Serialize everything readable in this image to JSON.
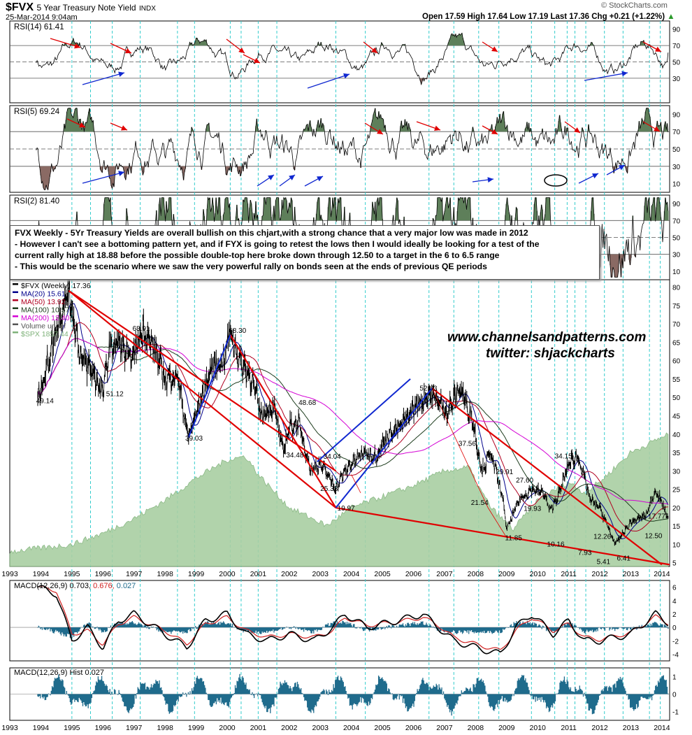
{
  "header": {
    "symbol": "$FVX",
    "name": "5 Year Treasury Note Yield",
    "exchange": "INDX",
    "date": "25-Mar-2014 9:04am",
    "quote": "Open 17.59  High 17.64  Low 17.19  Last 17.36  Chg +0.21 (+1.22%)",
    "quote_arrow": "▲",
    "brand": "© StockCharts.com"
  },
  "watermark": {
    "line1": "www.channelsandpatterns.com",
    "line2": "twitter: shjackcharts"
  },
  "annotation": {
    "lines": [
      "FVX Weekly - 5Yr Treasury Yields are overall bullish on this chjart,with a strong chance that a very major low was made in 2012",
      "- However I can't see a bottoming pattern yet, and if FYX is going to retest the lows then I would ideally be looking for a test of the",
      "current rally high at 18.88 before the possible double-top here broke down through 12.50 to a target in the 6 to 6.5 range",
      "- This would be the scenario where we saw the very powerful rally on bonds seen at the ends of previous QE periods"
    ]
  },
  "colors": {
    "price": "#000000",
    "ma20": "#00008b",
    "ma50": "#b00020",
    "ma100": "#1e3d1e",
    "ma200": "#d400d4",
    "spx_fill": "#a9cfa3",
    "spx_line": "#7fb27a",
    "trend_red": "#e00000",
    "channel_blue": "#1028d0",
    "cyan_dash": "#33cccc",
    "rsi_up_fill": "#5e7f5a",
    "rsi_down_fill": "#8a6a64",
    "macd_hist": "#1f6b8c",
    "macd_line": "#000000",
    "macd_signal": "#d02020"
  },
  "chart_data": [
    {
      "type": "line",
      "title": "RSI(14) 61.41",
      "label": "RSI(14)",
      "last_value": "61.41",
      "ylim": [
        0,
        100
      ],
      "ticks": [
        30,
        50,
        70,
        90
      ],
      "levels": [
        30,
        50,
        70
      ],
      "last": 61.41
    },
    {
      "type": "line",
      "title": "RSI(5) 69.24",
      "label": "RSI(5)",
      "last_value": "69.24",
      "ylim": [
        0,
        100
      ],
      "ticks": [
        10,
        30,
        50,
        70,
        90
      ],
      "levels": [
        30,
        50,
        70
      ],
      "last": 69.24
    },
    {
      "type": "line",
      "title": "RSI(2) 81.40",
      "label": "RSI(2)",
      "last_value": "81.40",
      "ylim": [
        0,
        100
      ],
      "ticks": [
        10,
        30,
        50,
        70,
        90
      ],
      "levels": [
        30,
        50,
        70
      ],
      "last": 81.4
    },
    {
      "type": "line",
      "title": "$FVX (Weekly) 17.36",
      "ylim": [
        4,
        82
      ],
      "yticks": [
        5,
        10,
        15,
        20,
        25,
        30,
        35,
        40,
        45,
        50,
        55,
        60,
        65,
        70,
        75,
        80
      ],
      "xlim": [
        1993,
        2014.25
      ],
      "xticks": [
        "1993",
        "1994",
        "1995",
        "1996",
        "1997",
        "1998",
        "1999",
        "2000",
        "2001",
        "2002",
        "2003",
        "2004",
        "2005",
        "2006",
        "2007",
        "2008",
        "2009",
        "2010",
        "2011",
        "2012",
        "2013",
        "2014"
      ],
      "legend": [
        {
          "name": "$FVX (Weekly) 17.36",
          "color": "#000000"
        },
        {
          "name": "MA(20) 15.61",
          "color": "#00008b"
        },
        {
          "name": "MA(50) 13.92",
          "color": "#b00020"
        },
        {
          "name": "MA(100) 10.57",
          "color": "#1e3d1e"
        },
        {
          "name": "MA(200) 12.40",
          "color": "#d400d4"
        },
        {
          "name": "Volume undef",
          "color": "#555555"
        },
        {
          "name": "$SPX 1857.44",
          "color": "#7fb27a"
        }
      ],
      "series": [
        {
          "name": "$FVX",
          "x": [
            1993.9,
            1994.3,
            1994.6,
            1994.9,
            1995.3,
            1995.6,
            1996.0,
            1996.2,
            1996.5,
            1996.9,
            1997.3,
            1997.7,
            1998.0,
            1998.4,
            1998.75,
            1999.1,
            1999.5,
            1999.9,
            2000.1,
            2000.4,
            2000.8,
            2001.1,
            2001.5,
            2001.8,
            2002.0,
            2002.3,
            2002.7,
            2003.0,
            2003.5,
            2003.8,
            2004.0,
            2004.4,
            2004.8,
            2005.2,
            2005.6,
            2006.0,
            2006.5,
            2006.8,
            2007.1,
            2007.5,
            2007.9,
            2008.2,
            2008.5,
            2008.9,
            2009.0,
            2009.4,
            2009.8,
            2010.2,
            2010.4,
            2010.7,
            2011.0,
            2011.3,
            2011.7,
            2012.0,
            2012.5,
            2013.0,
            2013.5,
            2013.8,
            2014.2
          ],
          "values": [
            49.14,
            62,
            72,
            79,
            60,
            58,
            51.12,
            63,
            65,
            60,
            68.91,
            62,
            55,
            56,
            39.03,
            48,
            58,
            60,
            68.3,
            60,
            55,
            45,
            48,
            35,
            42,
            43,
            30,
            32,
            25.33,
            30,
            32,
            35,
            34,
            40,
            42,
            47,
            51,
            49,
            46,
            52.63,
            44,
            30,
            35,
            21.54,
            14,
            22,
            25,
            24,
            19,
            24,
            32,
            34.15,
            22,
            20,
            10,
            16,
            18,
            25,
            17.36
          ]
        },
        {
          "name": "$SPX",
          "x": [
            1993,
            1994,
            1995,
            1996,
            1997,
            1998,
            1999,
            2000,
            2000.6,
            2001,
            2002,
            2003,
            2003.2,
            2004,
            2005,
            2006,
            2007,
            2007.8,
            2008,
            2008.5,
            2009.2,
            2010,
            2011,
            2011.5,
            2012,
            2013,
            2014.2
          ],
          "values": [
            8,
            9,
            10,
            13,
            17,
            22,
            28,
            33,
            34,
            29,
            20,
            16,
            15,
            20,
            23,
            26,
            30,
            31,
            27,
            20,
            14,
            22,
            27,
            24,
            27,
            35,
            40
          ]
        }
      ],
      "price_labels": [
        {
          "x": 1993.85,
          "y": 49.14,
          "text": "49.14"
        },
        {
          "x": 1996.1,
          "y": 51.12,
          "text": "51.12"
        },
        {
          "x": 1996.95,
          "y": 68.91,
          "text": "68.91"
        },
        {
          "x": 1998.65,
          "y": 39.03,
          "text": "39.03"
        },
        {
          "x": 2000.05,
          "y": 68.3,
          "text": "68.30"
        },
        {
          "x": 2001.9,
          "y": 34.48,
          "text": "34.48"
        },
        {
          "x": 2002.3,
          "y": 48.68,
          "text": "48.68"
        },
        {
          "x": 2003.1,
          "y": 34.04,
          "text": "34.04"
        },
        {
          "x": 2003.0,
          "y": 25.33,
          "text": "25.33"
        },
        {
          "x": 2003.55,
          "y": 19.97,
          "text": "19.97"
        },
        {
          "x": 2006.2,
          "y": 52.63,
          "text": "52.63"
        },
        {
          "x": 2007.45,
          "y": 37.56,
          "text": "37.56"
        },
        {
          "x": 2007.85,
          "y": 21.54,
          "text": "21.54"
        },
        {
          "x": 2008.65,
          "y": 29.91,
          "text": "29.91"
        },
        {
          "x": 2008.95,
          "y": 11.85,
          "text": "11.85"
        },
        {
          "x": 2009.3,
          "y": 27.6,
          "text": "27.60"
        },
        {
          "x": 2009.55,
          "y": 19.93,
          "text": "19.93"
        },
        {
          "x": 2010.55,
          "y": 34.15,
          "text": "34.15"
        },
        {
          "x": 2010.3,
          "y": 10.16,
          "text": "10.16"
        },
        {
          "x": 2011.3,
          "y": 7.93,
          "text": "7.93"
        },
        {
          "x": 2011.8,
          "y": 12.26,
          "text": "12.26"
        },
        {
          "x": 2011.9,
          "y": 5.41,
          "text": "5.41"
        },
        {
          "x": 2012.55,
          "y": 6.41,
          "text": "6.41"
        },
        {
          "x": 2013.55,
          "y": 17.77,
          "text": "17.77"
        },
        {
          "x": 2013.45,
          "y": 12.5,
          "text": "12.50"
        }
      ],
      "trendlines": [
        {
          "color": "#e00000",
          "x1": 1994.9,
          "y1": 79,
          "x2": 2003.5,
          "y2": 19.97
        },
        {
          "color": "#e00000",
          "x1": 1994.9,
          "y1": 79,
          "x2": 2003.5,
          "y2": 30
        },
        {
          "color": "#e00000",
          "x1": 2000.1,
          "y1": 67,
          "x2": 2003.5,
          "y2": 19.97
        },
        {
          "color": "#e00000",
          "x1": 2003.5,
          "y1": 19.97,
          "x2": 2014.25,
          "y2": 4.5
        },
        {
          "color": "#e00000",
          "x1": 2006.6,
          "y1": 52.5,
          "x2": 2014.0,
          "y2": 4.5
        },
        {
          "color": "#1028d0",
          "x1": 2003.5,
          "y1": 19.97,
          "x2": 2006.6,
          "y2": 52.5
        },
        {
          "color": "#1028d0",
          "x1": 2002.9,
          "y1": 32.5,
          "x2": 2005.9,
          "y2": 55
        },
        {
          "color": "#1028d0",
          "x1": 1998.75,
          "y1": 39.03,
          "x2": 2000.1,
          "y2": 67
        }
      ]
    },
    {
      "type": "line",
      "title": "MACD(12,26,9) 0.703, 0.676, 0.027",
      "label": "MACD(12,26,9)",
      "value_a": "0.703,",
      "value_b": "0.676,",
      "value_c": "0.027",
      "ylim": [
        -5,
        7
      ],
      "yticks": [
        -4,
        -2,
        0,
        2,
        4,
        6
      ],
      "series": [
        {
          "name": "MACD",
          "x": [
            1993.9,
            1994.5,
            1995.0,
            1995.5,
            1996.0,
            1996.5,
            1997.0,
            1998.0,
            1998.7,
            1999.3,
            2000.0,
            2000.6,
            2001.3,
            2002.0,
            2002.8,
            2003.4,
            2003.8,
            2004.5,
            2005.5,
            2006.3,
            2006.8,
            2007.3,
            2008.0,
            2008.8,
            2009.3,
            2009.8,
            2010.5,
            2011.0,
            2011.5,
            2012.0,
            2013.0,
            2013.8,
            2014.2
          ],
          "values": [
            6,
            5,
            -2,
            0,
            -3,
            1,
            2,
            -1,
            -3,
            1,
            2,
            -1,
            -2,
            -1,
            -2,
            0,
            2,
            0,
            1,
            2,
            0,
            -2,
            -3,
            -4,
            0,
            2,
            -1,
            1,
            -2,
            -2,
            -1,
            2,
            0.703
          ]
        },
        {
          "name": "Signal",
          "x": [
            1993.9,
            1994.5,
            1995.0,
            1995.5,
            1996.0,
            1996.5,
            1997.0,
            1998.0,
            1998.7,
            1999.3,
            2000.0,
            2000.6,
            2001.3,
            2002.0,
            2002.8,
            2003.4,
            2003.8,
            2004.5,
            2005.5,
            2006.3,
            2006.8,
            2007.3,
            2008.0,
            2008.8,
            2009.3,
            2009.8,
            2010.5,
            2011.0,
            2011.5,
            2012.0,
            2013.0,
            2013.8,
            2014.2
          ],
          "values": [
            6,
            5.5,
            -1,
            -0.5,
            -2.5,
            0.5,
            1.5,
            -0.5,
            -2.5,
            0.5,
            1.5,
            -0.5,
            -1.5,
            -1,
            -1.5,
            -0.5,
            1.5,
            0.3,
            0.8,
            1.5,
            0.3,
            -1.5,
            -2.5,
            -3.5,
            -0.5,
            1.5,
            -0.5,
            0.5,
            -1.5,
            -1.8,
            -0.8,
            1.6,
            0.676
          ]
        }
      ]
    },
    {
      "type": "bar",
      "title": "MACD(12,26,9) Hist 0.027",
      "label": "MACD(12,26,9) Hist",
      "last_value": "0.027",
      "ylim": [
        -1.5,
        1.5
      ],
      "yticks": [
        -1,
        0,
        1
      ],
      "xticks": [
        "1993",
        "1994",
        "1995",
        "1996",
        "1997",
        "1998",
        "1999",
        "2000",
        "2001",
        "2002",
        "2003",
        "2004",
        "2005",
        "2006",
        "2007",
        "2008",
        "2009",
        "2010",
        "2011",
        "2012",
        "2013",
        "2014"
      ],
      "last": 0.027
    }
  ]
}
